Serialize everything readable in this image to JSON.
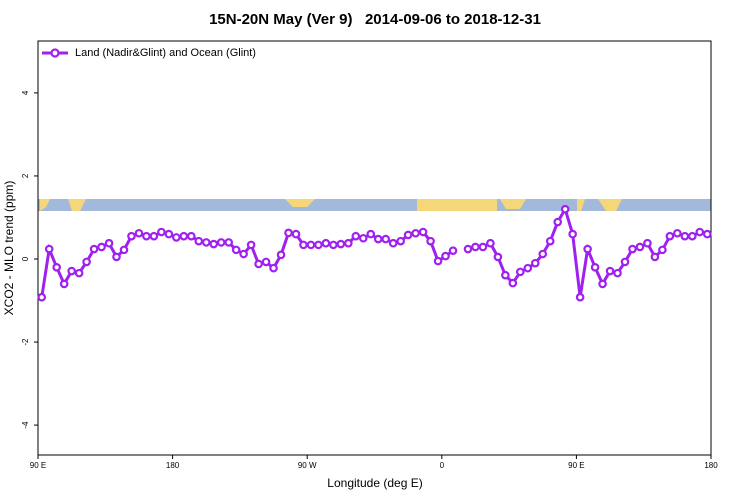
{
  "chart_data": {
    "type": "line",
    "title": "15N-20N May (Ver 9)   2014-09-06 to 2018-12-31",
    "x_label": "Longitude (deg E)",
    "y_label": "XCO2 - MLO trend (ppm)",
    "xlim": [
      90,
      540
    ],
    "xticks": [
      {
        "value": 90,
        "label": "90 E"
      },
      180,
      {
        "value": 270,
        "label": "90 W"
      },
      {
        "value": 360,
        "label": "0"
      },
      {
        "value": 450,
        "label": "90 E"
      },
      {
        "value": 540,
        "label": "180"
      }
    ],
    "ylim": [
      -4.72,
      5.25
    ],
    "yticks": [
      -4,
      -2,
      0,
      2,
      4
    ],
    "legend": "top-left",
    "x": [
      92.5,
      97.5,
      102.5,
      107.5,
      112.5,
      117.5,
      122.5,
      127.5,
      132.5,
      137.5,
      142.5,
      147.5,
      152.5,
      157.5,
      162.5,
      167.5,
      172.5,
      177.5,
      182.5,
      187.5,
      192.5,
      197.5,
      202.5,
      207.5,
      212.5,
      217.5,
      222.5,
      227.5,
      232.5,
      237.5,
      242.5,
      247.5,
      252.5,
      257.5,
      262.5,
      267.5,
      272.5,
      277.5,
      282.5,
      287.5,
      292.5,
      297.5,
      302.5,
      307.5,
      312.5,
      317.5,
      322.5,
      327.5,
      332.5,
      337.5,
      342.5,
      347.5,
      352.5,
      357.5,
      362.5,
      367.5,
      372.5,
      377.5,
      382.5,
      387.5,
      392.5,
      397.5,
      402.5,
      407.5,
      412.5,
      417.5,
      422.5,
      427.5,
      432.5,
      437.5,
      442.5,
      447.5,
      452.5,
      457.5,
      462.5,
      467.5,
      472.5,
      477.5,
      482.5,
      487.5,
      492.5,
      497.5,
      502.5,
      507.5,
      512.5,
      517.5,
      522.5,
      527.5,
      532.5,
      537.5
    ],
    "series": [
      {
        "name": "Land (Nadir&Glint) and Ocean (Glint)",
        "color": "#a020f0",
        "values": [
          -0.92,
          0.24,
          -0.2,
          -0.6,
          -0.29,
          -0.34,
          -0.07,
          0.24,
          0.29,
          0.38,
          0.05,
          0.22,
          0.55,
          0.62,
          0.55,
          0.55,
          0.65,
          0.6,
          0.52,
          0.55,
          0.55,
          0.43,
          0.4,
          0.36,
          0.4,
          0.4,
          0.22,
          0.12,
          0.34,
          -0.12,
          -0.07,
          -0.22,
          0.1,
          0.63,
          0.6,
          0.34,
          0.34,
          0.34,
          0.38,
          0.34,
          0.36,
          0.38,
          0.55,
          0.5,
          0.6,
          0.48,
          0.48,
          0.38,
          0.43,
          0.58,
          0.62,
          0.65,
          0.43,
          -0.05,
          0.07,
          0.2,
          null,
          0.24,
          0.29,
          0.29,
          0.38,
          0.05,
          -0.39,
          -0.58,
          -0.31,
          -0.22,
          -0.1,
          0.12,
          0.43,
          0.89,
          1.2,
          0.6,
          -0.92,
          0.24,
          -0.2,
          -0.6,
          -0.29,
          -0.34,
          -0.07,
          0.24,
          0.29,
          0.38,
          0.05,
          0.22,
          0.55,
          0.62,
          0.55,
          0.55,
          0.65,
          0.6
        ]
      }
    ]
  }
}
